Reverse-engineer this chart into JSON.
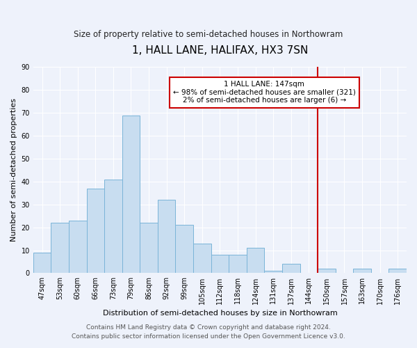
{
  "title": "1, HALL LANE, HALIFAX, HX3 7SN",
  "subtitle": "Size of property relative to semi-detached houses in Northowram",
  "xlabel": "Distribution of semi-detached houses by size in Northowram",
  "ylabel": "Number of semi-detached properties",
  "bar_labels": [
    "47sqm",
    "53sqm",
    "60sqm",
    "66sqm",
    "73sqm",
    "79sqm",
    "86sqm",
    "92sqm",
    "99sqm",
    "105sqm",
    "112sqm",
    "118sqm",
    "124sqm",
    "131sqm",
    "137sqm",
    "144sqm",
    "150sqm",
    "157sqm",
    "163sqm",
    "170sqm",
    "176sqm"
  ],
  "bar_values": [
    9,
    22,
    23,
    37,
    41,
    69,
    22,
    32,
    21,
    13,
    8,
    8,
    11,
    1,
    4,
    0,
    2,
    0,
    2,
    0,
    2
  ],
  "bar_color": "#c8ddf0",
  "bar_edge_color": "#7ab4d8",
  "vline_x": 15.5,
  "vline_color": "#cc0000",
  "annotation_title": "1 HALL LANE: 147sqm",
  "annotation_line1": "← 98% of semi-detached houses are smaller (321)",
  "annotation_line2": "2% of semi-detached houses are larger (6) →",
  "annotation_box_facecolor": "#ffffff",
  "annotation_box_edgecolor": "#cc0000",
  "ylim": [
    0,
    90
  ],
  "yticks": [
    0,
    10,
    20,
    30,
    40,
    50,
    60,
    70,
    80,
    90
  ],
  "footer_line1": "Contains HM Land Registry data © Crown copyright and database right 2024.",
  "footer_line2": "Contains public sector information licensed under the Open Government Licence v3.0.",
  "background_color": "#eef2fb",
  "grid_color": "#ffffff",
  "title_fontsize": 11,
  "subtitle_fontsize": 8.5,
  "axis_label_fontsize": 8,
  "tick_fontsize": 7,
  "annotation_fontsize": 7.5,
  "footer_fontsize": 6.5
}
